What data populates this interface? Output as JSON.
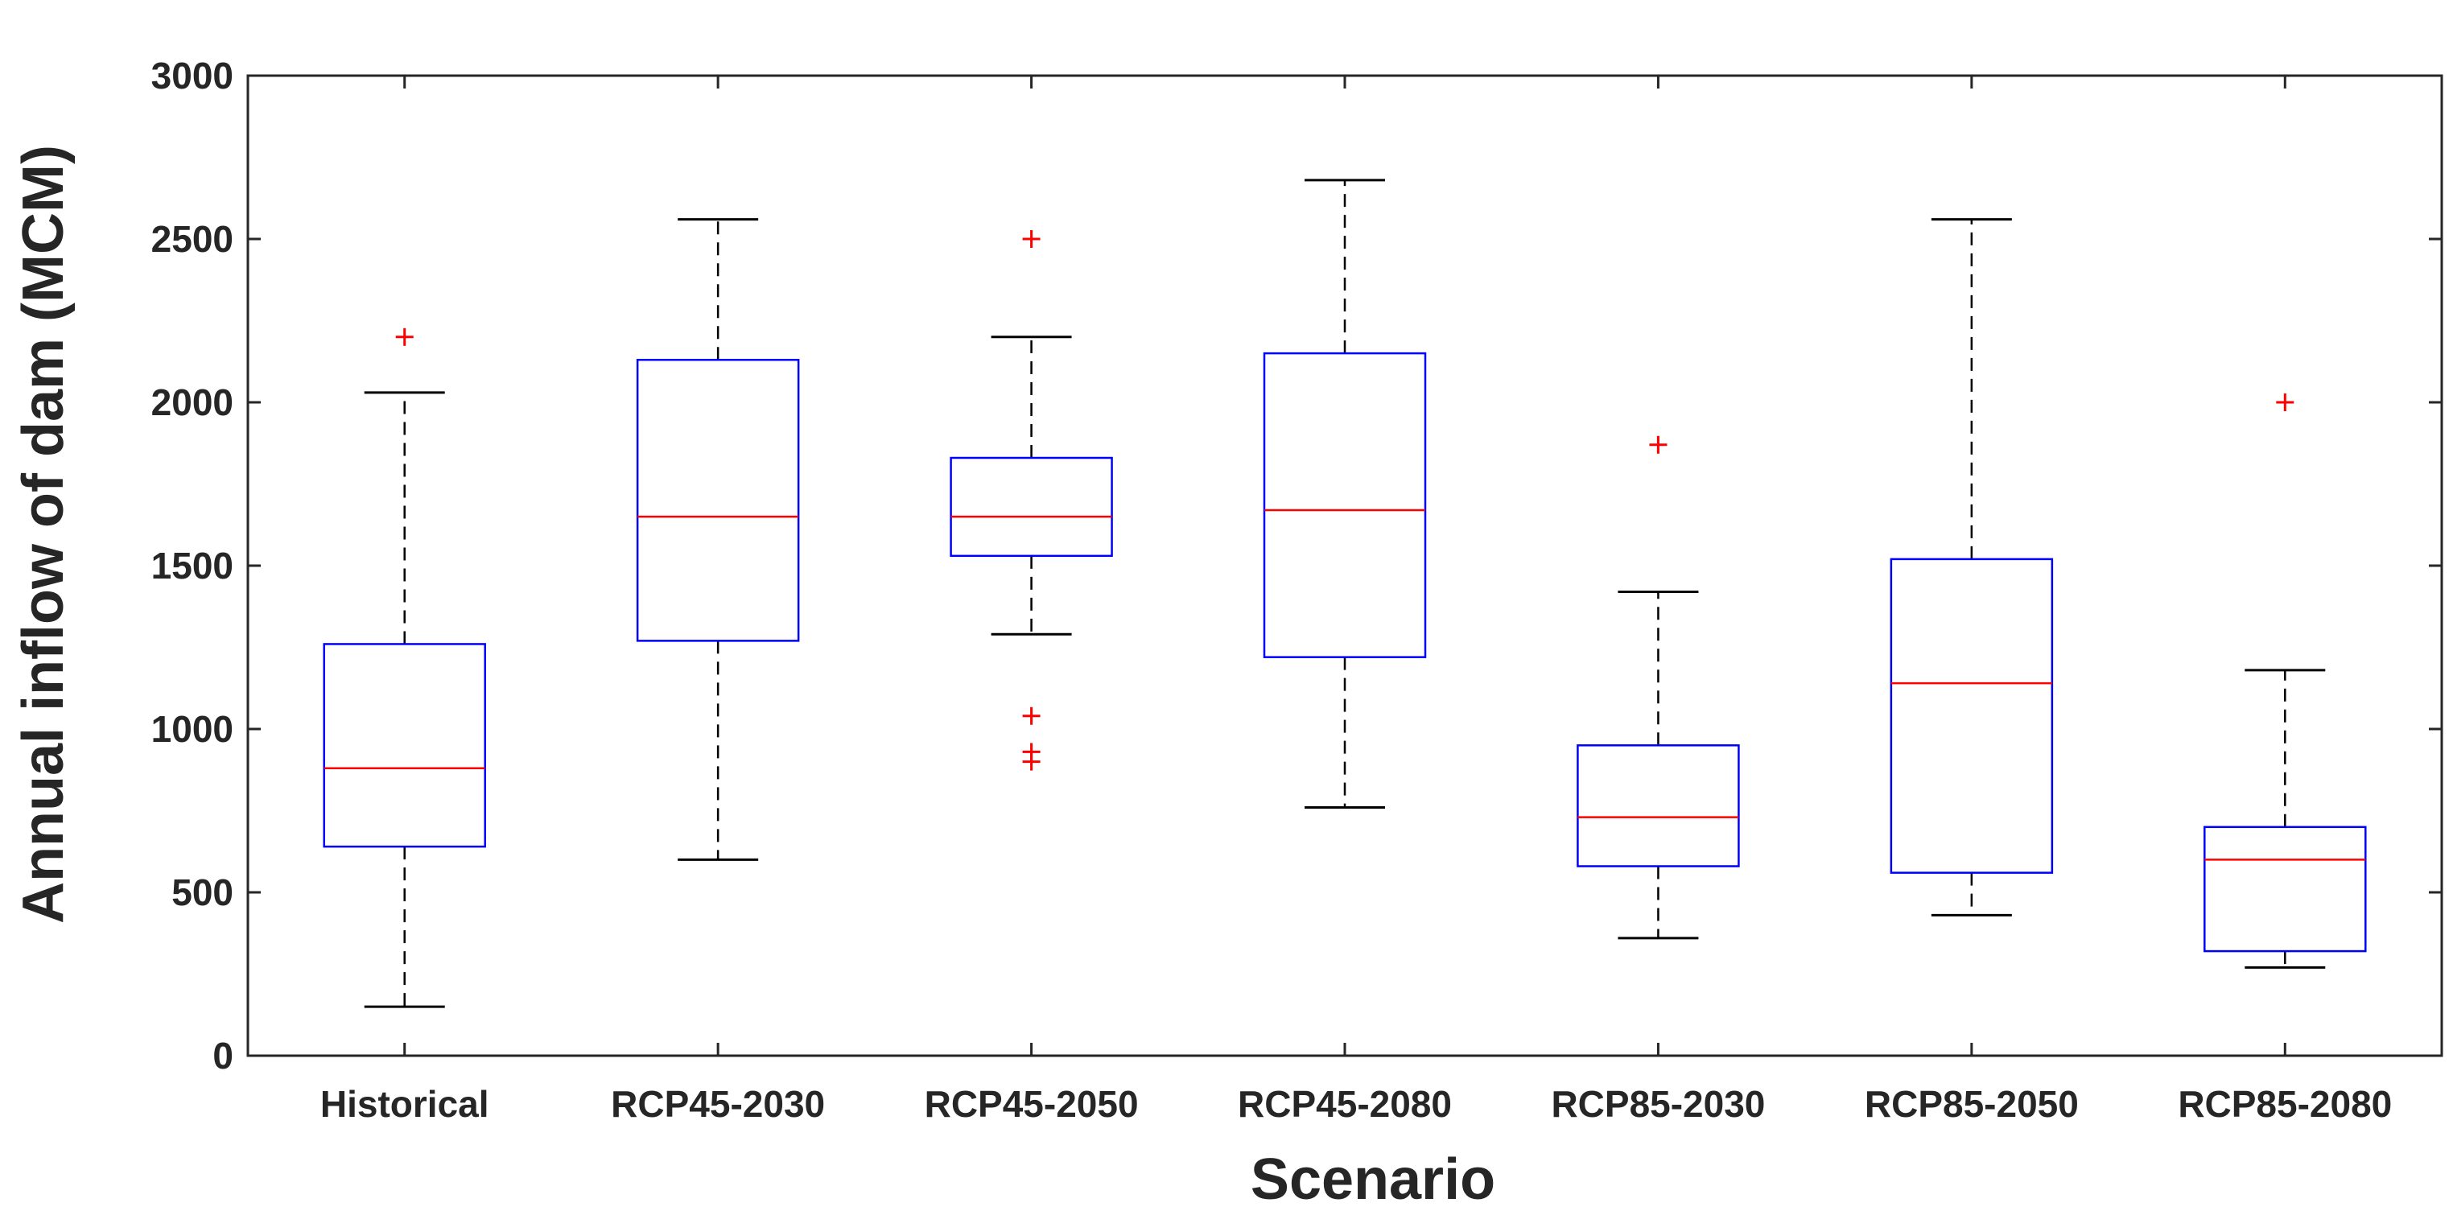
{
  "chart_data": {
    "type": "box",
    "title": "",
    "xlabel": "Scenario",
    "ylabel": "Annual inflow of dam (MCM)",
    "ylim": [
      0,
      3000
    ],
    "yticks": [
      0,
      500,
      1000,
      1500,
      2000,
      2500,
      3000
    ],
    "grid": false,
    "colors": {
      "box": "#0000ff",
      "median": "#ff0000",
      "whisker": "#000000",
      "outlier": "#ff0000",
      "axis": "#262626"
    },
    "categories": [
      "Historical",
      "RCP45-2030",
      "RCP45-2050",
      "RCP45-2080",
      "RCP85-2030",
      "RCP85-2050",
      "RCP85-2080"
    ],
    "boxes": [
      {
        "label": "Historical",
        "whisker_low": 150,
        "q1": 640,
        "median": 880,
        "q3": 1260,
        "whisker_high": 2030,
        "outliers": [
          2200
        ]
      },
      {
        "label": "RCP45-2030",
        "whisker_low": 600,
        "q1": 1270,
        "median": 1650,
        "q3": 2130,
        "whisker_high": 2560,
        "outliers": []
      },
      {
        "label": "RCP45-2050",
        "whisker_low": 1290,
        "q1": 1530,
        "median": 1650,
        "q3": 1830,
        "whisker_high": 2200,
        "outliers": [
          2500,
          1040,
          930,
          900
        ]
      },
      {
        "label": "RCP45-2080",
        "whisker_low": 760,
        "q1": 1220,
        "median": 1670,
        "q3": 2150,
        "whisker_high": 2680,
        "outliers": []
      },
      {
        "label": "RCP85-2030",
        "whisker_low": 360,
        "q1": 580,
        "median": 730,
        "q3": 950,
        "whisker_high": 1420,
        "outliers": [
          1870
        ]
      },
      {
        "label": "RCP85-2050",
        "whisker_low": 430,
        "q1": 560,
        "median": 1140,
        "q3": 1520,
        "whisker_high": 2560,
        "outliers": []
      },
      {
        "label": "RCP85-2080",
        "whisker_low": 270,
        "q1": 320,
        "median": 600,
        "q3": 700,
        "whisker_high": 1180,
        "outliers": [
          2000
        ]
      }
    ]
  }
}
